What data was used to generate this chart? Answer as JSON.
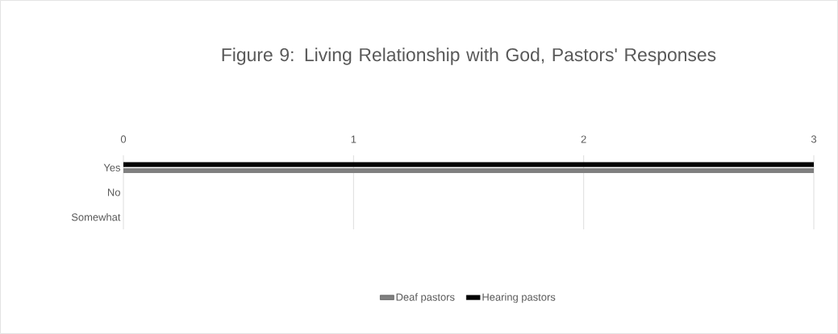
{
  "chart_data": {
    "type": "bar",
    "orientation": "horizontal",
    "title": "Figure 9: Living Relationship with God, Pastors' Responses",
    "categories": [
      "Yes",
      "No",
      "Somewhat"
    ],
    "series": [
      {
        "name": "Deaf pastors",
        "color": "#808080",
        "values": [
          3,
          0,
          0
        ]
      },
      {
        "name": "Hearing pastors",
        "color": "#000000",
        "values": [
          3,
          0,
          0
        ]
      }
    ],
    "xlim": [
      0,
      3
    ],
    "xticks": [
      0,
      1,
      2,
      3
    ],
    "grid": "x",
    "legend": "bottom"
  }
}
